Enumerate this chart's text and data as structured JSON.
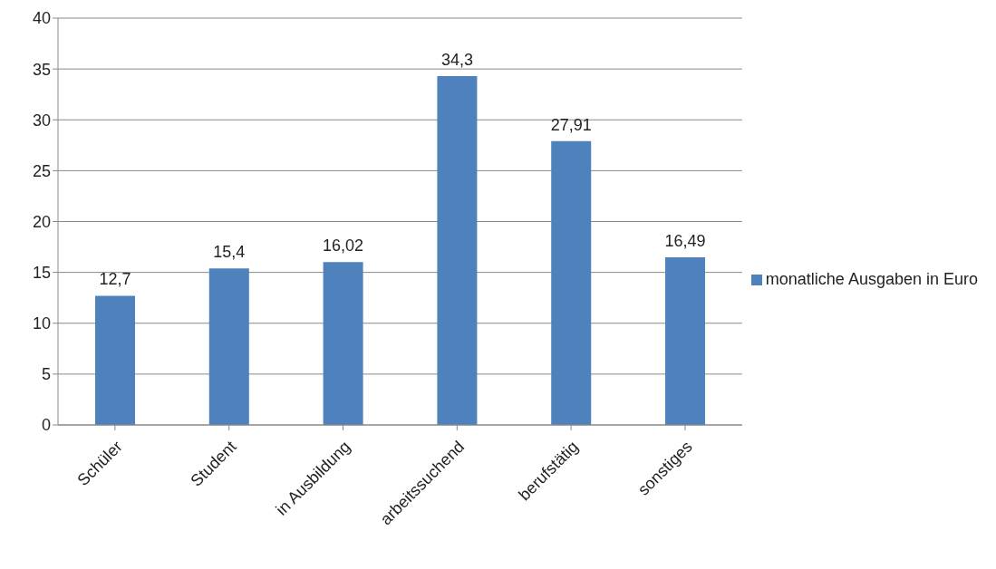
{
  "chart_data": {
    "type": "bar",
    "categories": [
      "Schüler",
      "Student",
      "in Ausbildung",
      "arbeitssuchend",
      "berufstätig",
      "sonstiges"
    ],
    "series": [
      {
        "name": "monatliche Ausgaben in Euro",
        "color": "#4f81bd",
        "values": [
          12.7,
          15.4,
          16.02,
          34.3,
          27.91,
          16.49
        ],
        "value_labels": [
          "12,7",
          "15,4",
          "16,02",
          "34,3",
          "27,91",
          "16,49"
        ]
      }
    ],
    "ylim": [
      0,
      40
    ],
    "yticks": [
      0,
      5,
      10,
      15,
      20,
      25,
      30,
      35,
      40
    ],
    "grid": "y",
    "legend": "right"
  }
}
